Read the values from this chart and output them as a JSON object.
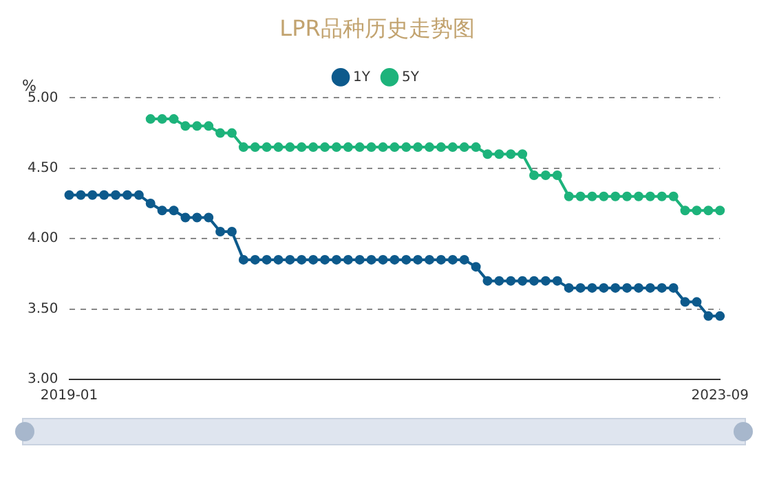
{
  "chart_data": {
    "type": "line",
    "title": "LPR品种历史走势图",
    "ylabel": "%",
    "categories": [
      "2019-01",
      null,
      null,
      null,
      null,
      null,
      null,
      null,
      null,
      null,
      null,
      null,
      null,
      null,
      null,
      null,
      null,
      null,
      null,
      null,
      null,
      null,
      null,
      null,
      null,
      null,
      null,
      null,
      null,
      null,
      null,
      null,
      null,
      null,
      null,
      null,
      null,
      null,
      null,
      null,
      null,
      null,
      null,
      null,
      null,
      null,
      null,
      null,
      null,
      null,
      null,
      null,
      null,
      null,
      null,
      null,
      "2023-09"
    ],
    "series": [
      {
        "name": "1Y",
        "color": "#0d5a8c",
        "values": [
          4.31,
          4.31,
          4.31,
          4.31,
          4.31,
          4.31,
          4.31,
          4.25,
          4.2,
          4.2,
          4.15,
          4.15,
          4.15,
          4.05,
          4.05,
          3.85,
          3.85,
          3.85,
          3.85,
          3.85,
          3.85,
          3.85,
          3.85,
          3.85,
          3.85,
          3.85,
          3.85,
          3.85,
          3.85,
          3.85,
          3.85,
          3.85,
          3.85,
          3.85,
          3.85,
          3.8,
          3.7,
          3.7,
          3.7,
          3.7,
          3.7,
          3.7,
          3.7,
          3.65,
          3.65,
          3.65,
          3.65,
          3.65,
          3.65,
          3.65,
          3.65,
          3.65,
          3.65,
          3.55,
          3.55,
          3.45,
          3.45
        ]
      },
      {
        "name": "5Y",
        "color": "#1db37b",
        "values": [
          null,
          null,
          null,
          null,
          null,
          null,
          null,
          4.85,
          4.85,
          4.85,
          4.8,
          4.8,
          4.8,
          4.75,
          4.75,
          4.65,
          4.65,
          4.65,
          4.65,
          4.65,
          4.65,
          4.65,
          4.65,
          4.65,
          4.65,
          4.65,
          4.65,
          4.65,
          4.65,
          4.65,
          4.65,
          4.65,
          4.65,
          4.65,
          4.65,
          4.65,
          4.6,
          4.6,
          4.6,
          4.6,
          4.45,
          4.45,
          4.45,
          4.3,
          4.3,
          4.3,
          4.3,
          4.3,
          4.3,
          4.3,
          4.3,
          4.3,
          4.3,
          4.2,
          4.2,
          4.2,
          4.2
        ]
      }
    ],
    "ylim": [
      3,
      5
    ],
    "yticks": [
      {
        "value": 3,
        "label": "3.00"
      },
      {
        "value": 3.5,
        "label": "3.50"
      },
      {
        "value": 4,
        "label": "4.00"
      },
      {
        "value": 4.5,
        "label": "4.50"
      },
      {
        "value": 5,
        "label": "5.00"
      }
    ],
    "grid": "y",
    "legend": "top",
    "marker": "circle",
    "line_style": "solid"
  }
}
